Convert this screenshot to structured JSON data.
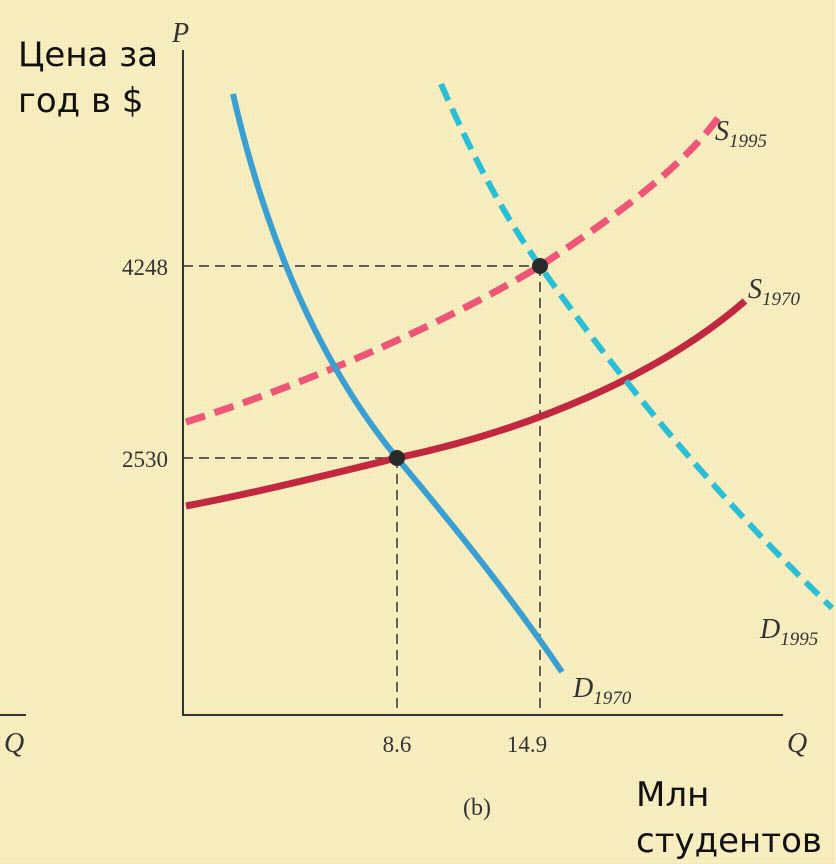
{
  "annotations": {
    "price_line1": "Цена за",
    "price_line2": "год в $",
    "qty_line1": "Млн",
    "qty_line2": "студентов"
  },
  "chart_data": {
    "type": "line",
    "caption": "(b)",
    "y_axis_letter": "P",
    "x_axis_letter": "Q",
    "left_edge_letter": "Q",
    "x_ticks": [
      "8.6",
      "14.9"
    ],
    "y_ticks": [
      "4248",
      "2530"
    ],
    "equilibria": [
      {
        "x": 8.6,
        "y": 2530
      },
      {
        "x": 14.9,
        "y": 4248
      }
    ],
    "curves": [
      {
        "base": "D",
        "sub": "1970",
        "color": "#3a9fd3",
        "dashed": false
      },
      {
        "base": "D",
        "sub": "1995",
        "color": "#29bfd6",
        "dashed": true
      },
      {
        "base": "S",
        "sub": "1970",
        "color": "#c1283f",
        "dashed": false
      },
      {
        "base": "S",
        "sub": "1995",
        "color": "#ee5677",
        "dashed": true
      }
    ]
  }
}
